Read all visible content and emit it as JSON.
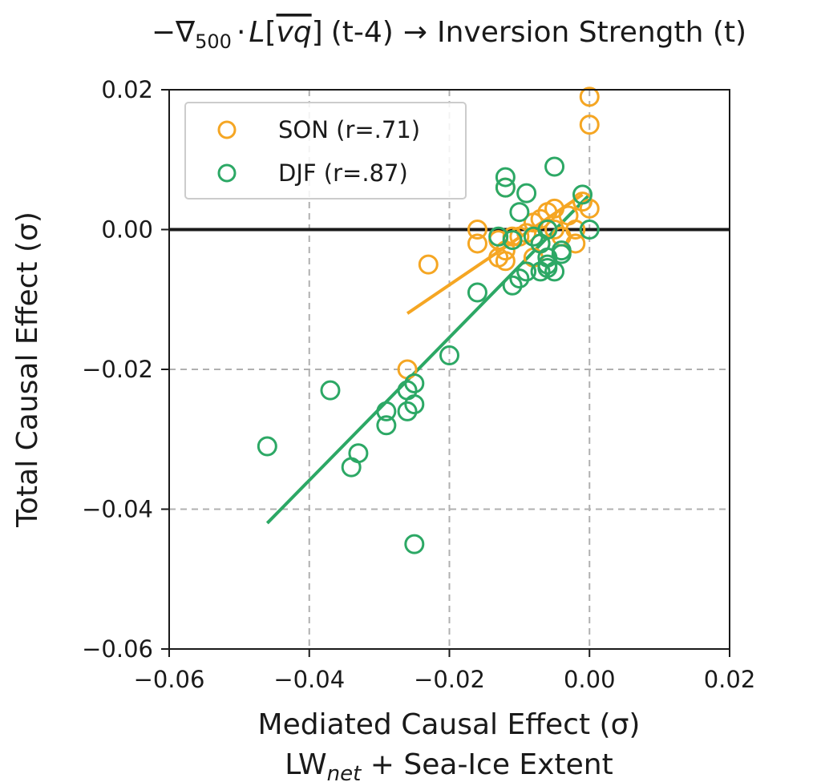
{
  "chart_data": {
    "type": "scatter",
    "title": "−∇500 · L[vq] (t-4) → Inversion Strength (t)",
    "title_parts": {
      "prefix": "−∇",
      "subscript": "500",
      "dot": "·",
      "L": "L",
      "open_bracket": "[",
      "vq": "vq",
      "close_bracket": "]",
      "lag": "(t-4)",
      "arrow": "→",
      "target": "Inversion Strength (t)"
    },
    "xlabel": "Mediated Causal Effect (σ)",
    "xlabel_line2": "LWnet + Sea-Ice Extent",
    "xlabel_line2_parts": {
      "base": "LW",
      "sub": "net",
      "rest": " + Sea-Ice Extent"
    },
    "ylabel": "Total Causal Effect (σ)",
    "xlim": [
      -0.06,
      0.02
    ],
    "ylim": [
      -0.06,
      0.02
    ],
    "xticks": [
      "−0.06",
      "−0.04",
      "−0.02",
      "0.00",
      "0.02"
    ],
    "yticks": [
      "−0.06",
      "−0.04",
      "−0.02",
      "0.00",
      "0.02"
    ],
    "xtick_values": [
      -0.06,
      -0.04,
      -0.02,
      0.0,
      0.02
    ],
    "ytick_values": [
      -0.06,
      -0.04,
      -0.02,
      0.0,
      0.02
    ],
    "grid": "dashed at ±0.02, ±0.04",
    "legend_position": "upper-left",
    "series": [
      {
        "name": "SON (r=.71)",
        "color": "#f5a623",
        "marker": "open-circle",
        "fit": [
          [
            -0.026,
            -0.012
          ],
          [
            -0.001,
            0.005
          ]
        ],
        "points": [
          [
            0.0,
            0.019
          ],
          [
            0.0,
            0.015
          ],
          [
            -0.012,
            0.006
          ],
          [
            -0.001,
            0.004
          ],
          [
            0.0,
            0.003
          ],
          [
            -0.005,
            0.003
          ],
          [
            -0.006,
            0.0025
          ],
          [
            -0.003,
            0.002
          ],
          [
            -0.007,
            0.0015
          ],
          [
            -0.008,
            0.001
          ],
          [
            -0.016,
            0.0
          ],
          [
            -0.005,
            0.0
          ],
          [
            -0.002,
            0.0
          ],
          [
            -0.009,
            -0.0005
          ],
          [
            -0.011,
            -0.001
          ],
          [
            -0.013,
            -0.0015
          ],
          [
            -0.004,
            -0.001
          ],
          [
            -0.002,
            -0.002
          ],
          [
            -0.016,
            -0.002
          ],
          [
            -0.012,
            -0.003
          ],
          [
            -0.007,
            -0.002
          ],
          [
            -0.008,
            -0.004
          ],
          [
            -0.013,
            -0.004
          ],
          [
            -0.023,
            -0.005
          ],
          [
            -0.012,
            -0.0045
          ],
          [
            -0.01,
            -0.001
          ],
          [
            -0.006,
            0.0
          ],
          [
            -0.026,
            -0.02
          ]
        ]
      },
      {
        "name": "DJF (r=.87)",
        "color": "#2ca865",
        "marker": "open-circle",
        "fit": [
          [
            -0.046,
            -0.042
          ],
          [
            0.0,
            0.005
          ]
        ],
        "points": [
          [
            -0.005,
            0.009
          ],
          [
            -0.012,
            0.0075
          ],
          [
            -0.009,
            0.0052
          ],
          [
            -0.001,
            0.005
          ],
          [
            -0.012,
            0.006
          ],
          [
            -0.01,
            0.0025
          ],
          [
            0.0,
            0.0
          ],
          [
            -0.006,
            0.0
          ],
          [
            -0.013,
            -0.001
          ],
          [
            -0.008,
            -0.001
          ],
          [
            -0.011,
            -0.0015
          ],
          [
            -0.007,
            -0.002
          ],
          [
            -0.004,
            -0.003
          ],
          [
            -0.006,
            -0.004
          ],
          [
            -0.004,
            -0.0035
          ],
          [
            -0.009,
            -0.006
          ],
          [
            -0.006,
            -0.005
          ],
          [
            -0.007,
            -0.006
          ],
          [
            -0.01,
            -0.007
          ],
          [
            -0.011,
            -0.008
          ],
          [
            -0.006,
            -0.0055
          ],
          [
            -0.016,
            -0.009
          ],
          [
            -0.02,
            -0.018
          ],
          [
            -0.037,
            -0.023
          ],
          [
            -0.025,
            -0.022
          ],
          [
            -0.026,
            -0.023
          ],
          [
            -0.025,
            -0.025
          ],
          [
            -0.026,
            -0.026
          ],
          [
            -0.029,
            -0.026
          ],
          [
            -0.029,
            -0.028
          ],
          [
            -0.033,
            -0.032
          ],
          [
            -0.034,
            -0.034
          ],
          [
            -0.046,
            -0.031
          ],
          [
            -0.025,
            -0.045
          ],
          [
            -0.005,
            -0.006
          ]
        ]
      }
    ]
  }
}
